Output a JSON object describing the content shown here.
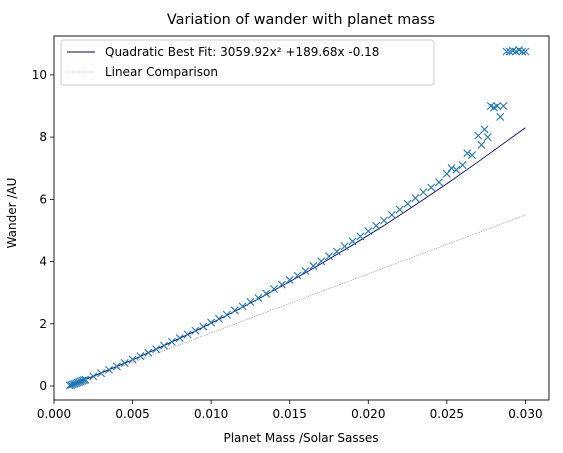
{
  "chart_data": {
    "type": "scatter",
    "title": "Variation of wander with planet mass",
    "xlabel": "Planet Mass /Solar Sasses",
    "ylabel": "Wander /AU",
    "xlim": [
      0.0,
      0.0315
    ],
    "ylim": [
      -0.45,
      11.25
    ],
    "xticks": [
      0.0,
      0.005,
      0.01,
      0.015,
      0.02,
      0.025,
      0.03
    ],
    "xtick_labels": [
      "0.000",
      "0.005",
      "0.010",
      "0.015",
      "0.020",
      "0.025",
      "0.030"
    ],
    "yticks": [
      0,
      2,
      4,
      6,
      8,
      10
    ],
    "ytick_labels": [
      "0",
      "2",
      "4",
      "6",
      "8",
      "10"
    ],
    "grid": false,
    "legend_position": "top-left",
    "series": [
      {
        "name": "",
        "kind": "scatter",
        "marker": "x",
        "color": "#1f77b4",
        "points": [
          [
            0.001,
            0.02
          ],
          [
            0.0011,
            0.03
          ],
          [
            0.0012,
            0.05
          ],
          [
            0.0013,
            0.07
          ],
          [
            0.0014,
            0.09
          ],
          [
            0.0015,
            0.11
          ],
          [
            0.0016,
            0.13
          ],
          [
            0.0017,
            0.15
          ],
          [
            0.0018,
            0.17
          ],
          [
            0.0019,
            0.19
          ],
          [
            0.002,
            0.2
          ],
          [
            0.0025,
            0.31
          ],
          [
            0.003,
            0.41
          ],
          [
            0.0035,
            0.52
          ],
          [
            0.004,
            0.63
          ],
          [
            0.0045,
            0.74
          ],
          [
            0.005,
            0.85
          ],
          [
            0.0055,
            0.96
          ],
          [
            0.006,
            1.07
          ],
          [
            0.0065,
            1.18
          ],
          [
            0.007,
            1.3
          ],
          [
            0.0075,
            1.42
          ],
          [
            0.008,
            1.54
          ],
          [
            0.0085,
            1.66
          ],
          [
            0.009,
            1.78
          ],
          [
            0.0095,
            1.91
          ],
          [
            0.01,
            2.04
          ],
          [
            0.0105,
            2.16
          ],
          [
            0.011,
            2.29
          ],
          [
            0.0115,
            2.43
          ],
          [
            0.012,
            2.56
          ],
          [
            0.0125,
            2.7
          ],
          [
            0.013,
            2.83
          ],
          [
            0.0135,
            2.97
          ],
          [
            0.014,
            3.12
          ],
          [
            0.0145,
            3.26
          ],
          [
            0.015,
            3.41
          ],
          [
            0.0155,
            3.55
          ],
          [
            0.016,
            3.7
          ],
          [
            0.0165,
            3.86
          ],
          [
            0.017,
            4.01
          ],
          [
            0.0175,
            4.17
          ],
          [
            0.018,
            4.32
          ],
          [
            0.0185,
            4.49
          ],
          [
            0.019,
            4.65
          ],
          [
            0.0195,
            4.81
          ],
          [
            0.02,
            4.98
          ],
          [
            0.0205,
            5.15
          ],
          [
            0.021,
            5.32
          ],
          [
            0.0215,
            5.5
          ],
          [
            0.022,
            5.67
          ],
          [
            0.0225,
            5.86
          ],
          [
            0.023,
            6.04
          ],
          [
            0.0235,
            6.23
          ],
          [
            0.024,
            6.38
          ],
          [
            0.0245,
            6.55
          ],
          [
            0.025,
            6.82
          ],
          [
            0.0253,
            7.0
          ],
          [
            0.0256,
            6.95
          ],
          [
            0.026,
            7.1
          ],
          [
            0.0263,
            7.48
          ],
          [
            0.0266,
            7.42
          ],
          [
            0.027,
            8.05
          ],
          [
            0.0272,
            7.75
          ],
          [
            0.0274,
            8.25
          ],
          [
            0.0276,
            8.0
          ],
          [
            0.0278,
            9.0
          ],
          [
            0.028,
            8.95
          ],
          [
            0.0282,
            9.0
          ],
          [
            0.0284,
            8.65
          ],
          [
            0.0286,
            9.0
          ],
          [
            0.0288,
            10.75
          ],
          [
            0.029,
            10.75
          ],
          [
            0.0292,
            10.78
          ],
          [
            0.0294,
            10.75
          ],
          [
            0.0296,
            10.8
          ],
          [
            0.0298,
            10.75
          ],
          [
            0.03,
            10.75
          ]
        ]
      },
      {
        "name": "Quadratic Best Fit: 3059.92x² +189.68x -0.18",
        "kind": "line",
        "style": "solid",
        "color": "#000080",
        "x": [
          0.001,
          0.003,
          0.005,
          0.007,
          0.009,
          0.011,
          0.013,
          0.015,
          0.017,
          0.019,
          0.021,
          0.023,
          0.025,
          0.027,
          0.029,
          0.03
        ],
        "y": [
          0.01,
          0.42,
          0.84,
          1.3,
          1.77,
          2.27,
          2.8,
          3.35,
          3.93,
          4.53,
          5.16,
          5.82,
          6.5,
          7.21,
          7.94,
          8.3
        ]
      },
      {
        "name": "Linear Comparison",
        "kind": "line",
        "style": "dotted",
        "color": "#808080",
        "x": [
          0.001,
          0.03
        ],
        "y": [
          0.0,
          5.5
        ]
      }
    ]
  }
}
